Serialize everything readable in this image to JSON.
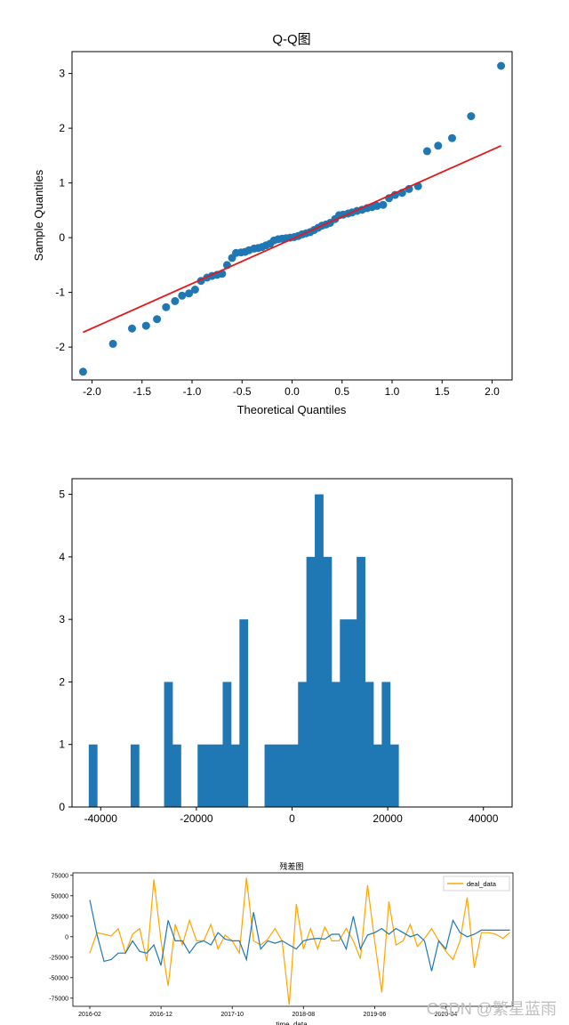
{
  "chart_data": [
    {
      "type": "scatter",
      "title": "Q-Q图",
      "xlabel": "Theoretical Quantiles",
      "ylabel": "Sample Quantiles",
      "xlim": [
        -2.2,
        2.2
      ],
      "ylim": [
        -2.6,
        3.4
      ],
      "xticks": [
        -2.0,
        -1.5,
        -1.0,
        -0.5,
        0.0,
        0.5,
        1.0,
        1.5,
        2.0
      ],
      "xtick_labels": [
        "-2.0",
        "-1.5",
        "-1.0",
        "-0.5",
        "0.0",
        "0.5",
        "1.0",
        "1.5",
        "2.0"
      ],
      "yticks": [
        -2,
        -1,
        0,
        1,
        2,
        3
      ],
      "ytick_labels": [
        "-2",
        "-1",
        "0",
        "1",
        "2",
        "3"
      ],
      "points_color": "#1f77b4",
      "reference_line": {
        "x": [
          -2.09,
          2.09
        ],
        "y": [
          -1.73,
          1.68
        ],
        "color": "#e31a1c"
      },
      "points": [
        [
          -2.09,
          -2.45
        ],
        [
          -1.79,
          -1.94
        ],
        [
          -1.6,
          -1.66
        ],
        [
          -1.46,
          -1.61
        ],
        [
          -1.35,
          -1.49
        ],
        [
          -1.26,
          -1.27
        ],
        [
          -1.17,
          -1.16
        ],
        [
          -1.1,
          -1.06
        ],
        [
          -1.03,
          -1.02
        ],
        [
          -0.97,
          -0.95
        ],
        [
          -0.91,
          -0.79
        ],
        [
          -0.85,
          -0.73
        ],
        [
          -0.8,
          -0.7
        ],
        [
          -0.75,
          -0.68
        ],
        [
          -0.7,
          -0.66
        ],
        [
          -0.65,
          -0.5
        ],
        [
          -0.6,
          -0.37
        ],
        [
          -0.56,
          -0.28
        ],
        [
          -0.51,
          -0.27
        ],
        [
          -0.47,
          -0.26
        ],
        [
          -0.43,
          -0.23
        ],
        [
          -0.38,
          -0.2
        ],
        [
          -0.34,
          -0.19
        ],
        [
          -0.3,
          -0.17
        ],
        [
          -0.26,
          -0.14
        ],
        [
          -0.22,
          -0.11
        ],
        [
          -0.18,
          -0.05
        ],
        [
          -0.14,
          -0.03
        ],
        [
          -0.1,
          -0.02
        ],
        [
          -0.06,
          -0.01
        ],
        [
          -0.02,
          0.0
        ],
        [
          0.02,
          0.01
        ],
        [
          0.06,
          0.03
        ],
        [
          0.1,
          0.06
        ],
        [
          0.14,
          0.08
        ],
        [
          0.18,
          0.1
        ],
        [
          0.22,
          0.14
        ],
        [
          0.26,
          0.18
        ],
        [
          0.3,
          0.22
        ],
        [
          0.34,
          0.24
        ],
        [
          0.38,
          0.27
        ],
        [
          0.43,
          0.34
        ],
        [
          0.47,
          0.41
        ],
        [
          0.51,
          0.42
        ],
        [
          0.56,
          0.44
        ],
        [
          0.6,
          0.46
        ],
        [
          0.65,
          0.49
        ],
        [
          0.7,
          0.51
        ],
        [
          0.75,
          0.54
        ],
        [
          0.8,
          0.56
        ],
        [
          0.85,
          0.58
        ],
        [
          0.91,
          0.6
        ],
        [
          0.97,
          0.72
        ],
        [
          1.03,
          0.78
        ],
        [
          1.1,
          0.82
        ],
        [
          1.17,
          0.89
        ],
        [
          1.26,
          0.94
        ],
        [
          1.35,
          1.58
        ],
        [
          1.46,
          1.68
        ],
        [
          1.6,
          1.82
        ],
        [
          1.79,
          2.22
        ],
        [
          2.09,
          3.14
        ]
      ]
    },
    {
      "type": "bar",
      "title": "",
      "xlim": [
        -46000,
        46000
      ],
      "ylim": [
        0,
        5.25
      ],
      "xticks": [
        -40000,
        -20000,
        0,
        20000,
        40000
      ],
      "xtick_labels": [
        "-40000",
        "-20000",
        "0",
        "20000",
        "40000"
      ],
      "yticks": [
        0,
        1,
        2,
        3,
        4,
        5
      ],
      "ytick_labels": [
        "0",
        "1",
        "2",
        "3",
        "4",
        "5"
      ],
      "color": "#1f77b4",
      "bin_start": -42500,
      "bin_width": 1750,
      "counts": [
        1,
        0,
        0,
        0,
        0,
        1,
        0,
        0,
        0,
        2,
        1,
        0,
        0,
        1,
        1,
        1,
        2,
        1,
        3,
        0,
        0,
        1,
        1,
        1,
        1,
        2,
        4,
        5,
        4,
        2,
        3,
        3,
        4,
        2,
        1,
        2,
        1,
        0,
        0,
        0,
        0,
        0,
        0,
        0,
        0,
        0,
        0,
        0,
        0,
        0,
        0,
        0,
        0,
        0,
        0,
        0,
        0,
        0,
        0,
        0
      ]
    },
    {
      "type": "line",
      "title": "残差图",
      "xlabel": "time_data",
      "ylabel": "",
      "xlim": [
        0,
        59
      ],
      "ylim": [
        -85000,
        78000
      ],
      "yticks": [
        75000,
        50000,
        25000,
        0,
        -25000,
        -50000,
        -75000
      ],
      "ytick_labels": [
        "75000",
        "50000",
        "25000",
        "0",
        "-25000",
        "-50000",
        "-75000"
      ],
      "xtick_positions": [
        2,
        12,
        22,
        32,
        42,
        52
      ],
      "xtick_labels": [
        "2016-02",
        "2016-12",
        "2017-10",
        "2018-08",
        "2019-06",
        "2020-04"
      ],
      "legend": {
        "position": "top-right",
        "entries": [
          "deal_data"
        ]
      },
      "series": [
        {
          "name": "deal_data",
          "color": "#ffa500",
          "values": [
            -20000,
            5000,
            3000,
            1000,
            10000,
            -20000,
            3000,
            10000,
            -30000,
            70000,
            -5000,
            -60000,
            15000,
            -10000,
            20000,
            -5000,
            -5000,
            15000,
            -15000,
            2000,
            -5000,
            -20000,
            72000,
            -5000,
            -10000,
            -3000,
            10000,
            -5000,
            -83000,
            40000,
            -15000,
            10000,
            -15000,
            12000,
            -5000,
            -5000,
            10000,
            -5000,
            -27000,
            63000,
            -5000,
            -68000,
            43000,
            -10000,
            -5000,
            15000,
            -12000,
            -2000,
            10000,
            -5000,
            -18000,
            -28000,
            -5000,
            48000,
            -38000,
            5000,
            5000,
            3000,
            -2000,
            5000
          ]
        },
        {
          "name": "",
          "color": "#1f77b4",
          "values": [
            45000,
            3000,
            -30000,
            -28000,
            -20000,
            -20000,
            -5000,
            -18000,
            -20000,
            -10000,
            -35000,
            20000,
            -5000,
            -5000,
            -20000,
            -8000,
            -5000,
            -10000,
            5000,
            -3000,
            -5000,
            -5000,
            -28000,
            30000,
            -15000,
            -5000,
            -8000,
            -5000,
            -10000,
            -15000,
            -5000,
            -3000,
            -2000,
            -3000,
            3000,
            3000,
            -15000,
            25000,
            -15000,
            2000,
            5000,
            10000,
            3000,
            10000,
            5000,
            0,
            3000,
            -5000,
            -42000,
            -5000,
            -15000,
            20000,
            5000,
            0,
            3000,
            8000,
            8000,
            8000,
            8000,
            8000
          ]
        }
      ]
    }
  ],
  "watermark": "CSDN @繁星蓝雨"
}
